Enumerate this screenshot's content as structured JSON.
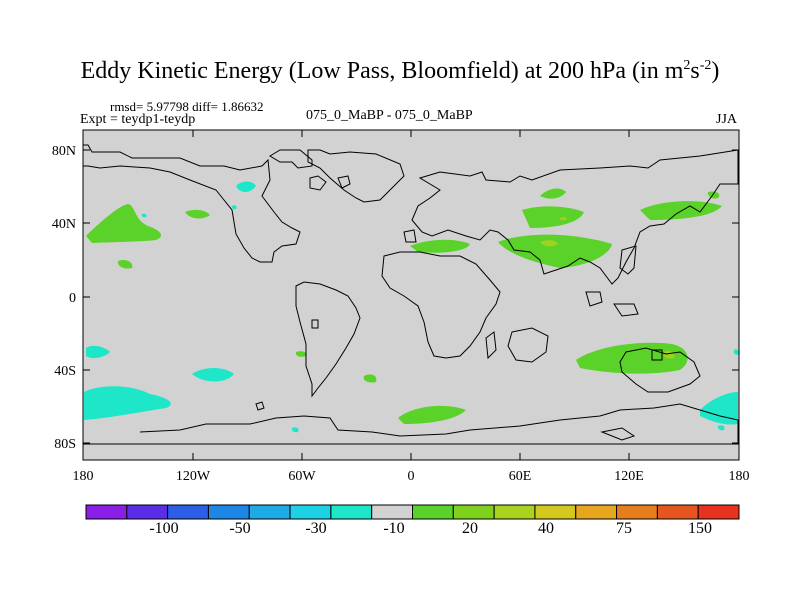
{
  "title": {
    "main": "Eddy Kinetic Energy (Low Pass, Bloomfield) at 200 hPa (in m",
    "sup1": "2",
    "mid": "s",
    "sup2": "-2",
    "end": ")"
  },
  "stats": "rmsd= 5.97798 diff= 1.86632",
  "expt": "Expt = teydp1-teydp",
  "center_label": "075_0_MaBP - 075_0_MaBP",
  "season": "JJA",
  "lat_labels": [
    "80N",
    "40N",
    "0",
    "40S",
    "80S"
  ],
  "lon_labels": [
    "180",
    "120W",
    "60W",
    "0",
    "60E",
    "120E",
    "180"
  ],
  "colorbar": {
    "labels": [
      "-100",
      "-50",
      "-30",
      "-10",
      "20",
      "40",
      "75",
      "150"
    ],
    "colors": [
      "#8a1ee6",
      "#5a2ee6",
      "#2c5ee6",
      "#1e86e6",
      "#1eaae6",
      "#1ed2e6",
      "#1ee6c8",
      "#d2d2d2",
      "#5ad22a",
      "#7ed21e",
      "#aad21e",
      "#d2c81e",
      "#e6a61e",
      "#e67e1e",
      "#e6561e",
      "#e6321e"
    ]
  },
  "colors": {
    "background": "#d2d2d2",
    "green": "#5ad22a",
    "yellow_green": "#9ed21e",
    "cyan": "#1ee6c8",
    "coast": "#000000"
  }
}
